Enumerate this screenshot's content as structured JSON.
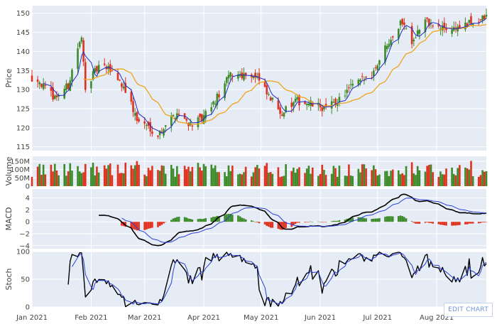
{
  "edit_button": "EDIT CHART",
  "colors": {
    "plot_bg": "#E5ECF6",
    "grid": "#FFFFFF",
    "increasing": "#3D8B2B",
    "decreasing": "#E0321E",
    "ma_fast": "#1F2BC9",
    "ma_slow": "#F0A31A",
    "macd_line": "#000000",
    "signal_line": "#2B3FD8",
    "stoch_k": "#000000",
    "stoch_d": "#2B3FD8"
  },
  "chart_data": {
    "type": "candlestick",
    "x_start": "2021-01-01",
    "x_end": "2021-08-27",
    "x_ticks": [
      {
        "date": "2021-01-01",
        "label": "Jan 2021"
      },
      {
        "date": "2021-02-01",
        "label": "Feb 2021"
      },
      {
        "date": "2021-03-01",
        "label": "Mar 2021"
      },
      {
        "date": "2021-04-01",
        "label": "Apr 2021"
      },
      {
        "date": "2021-05-01",
        "label": "May 2021"
      },
      {
        "date": "2021-06-01",
        "label": "Jun 2021"
      },
      {
        "date": "2021-07-01",
        "label": "Jul 2021"
      },
      {
        "date": "2021-08-01",
        "label": "Aug 2021"
      }
    ],
    "close_anchors": [
      [
        "2021-01-04",
        133
      ],
      [
        "2021-01-08",
        130
      ],
      [
        "2021-01-13",
        128
      ],
      [
        "2021-01-20",
        131
      ],
      [
        "2021-01-25",
        141
      ],
      [
        "2021-01-27",
        143
      ],
      [
        "2021-01-29",
        131
      ],
      [
        "2021-02-05",
        136
      ],
      [
        "2021-02-12",
        135
      ],
      [
        "2021-02-19",
        130
      ],
      [
        "2021-02-25",
        122
      ],
      [
        "2021-03-04",
        120
      ],
      [
        "2021-03-08",
        118
      ],
      [
        "2021-03-12",
        121
      ],
      [
        "2021-03-18",
        124
      ],
      [
        "2021-03-25",
        121
      ],
      [
        "2021-03-31",
        122
      ],
      [
        "2021-04-07",
        127
      ],
      [
        "2021-04-15",
        134
      ],
      [
        "2021-04-26",
        134
      ],
      [
        "2021-04-29",
        133
      ],
      [
        "2021-05-05",
        128
      ],
      [
        "2021-05-12",
        124
      ],
      [
        "2021-05-20",
        127
      ],
      [
        "2021-05-28",
        126
      ],
      [
        "2021-06-04",
        125
      ],
      [
        "2021-06-10",
        127
      ],
      [
        "2021-06-18",
        131
      ],
      [
        "2021-06-28",
        134
      ],
      [
        "2021-07-07",
        143
      ],
      [
        "2021-07-14",
        148
      ],
      [
        "2021-07-19",
        143
      ],
      [
        "2021-07-26",
        148
      ],
      [
        "2021-08-02",
        146
      ],
      [
        "2021-08-09",
        146
      ],
      [
        "2021-08-17",
        147
      ],
      [
        "2021-08-27",
        149
      ]
    ],
    "panels": [
      {
        "id": "price",
        "ylabel": "Price",
        "ylim": [
          114,
          152
        ],
        "y_ticks": [
          115,
          120,
          125,
          130,
          135,
          140,
          145,
          150
        ],
        "series": [
          "candles",
          "ma_fast",
          "ma_slow"
        ]
      },
      {
        "id": "volume",
        "ylabel": "Volume",
        "ylim": [
          0,
          180
        ],
        "y_ticks": [
          {
            "v": 0,
            "label": "0"
          },
          {
            "v": 50,
            "label": "50M"
          },
          {
            "v": 100,
            "label": "100M"
          },
          {
            "v": 150,
            "label": "150M"
          }
        ],
        "series": [
          "volume_bars"
        ]
      },
      {
        "id": "macd",
        "ylabel": "MACD",
        "ylim": [
          -4.5,
          5.5
        ],
        "y_ticks": [
          {
            "v": -4,
            "label": "−4"
          },
          {
            "v": -2,
            "label": "−2"
          },
          {
            "v": 0,
            "label": "0"
          },
          {
            "v": 2,
            "label": "2"
          },
          {
            "v": 4,
            "label": "4"
          }
        ],
        "series": [
          "macd_hist",
          "macd_line",
          "signal_line"
        ]
      },
      {
        "id": "stoch",
        "ylabel": "Stoch",
        "ylim": [
          0,
          100
        ],
        "y_ticks": [
          {
            "v": 0,
            "label": "0"
          },
          {
            "v": 50,
            "label": "50"
          },
          {
            "v": 100,
            "label": "100"
          }
        ],
        "series": [
          "stoch_k",
          "stoch_d"
        ]
      }
    ],
    "grid": true,
    "legend": "none"
  }
}
